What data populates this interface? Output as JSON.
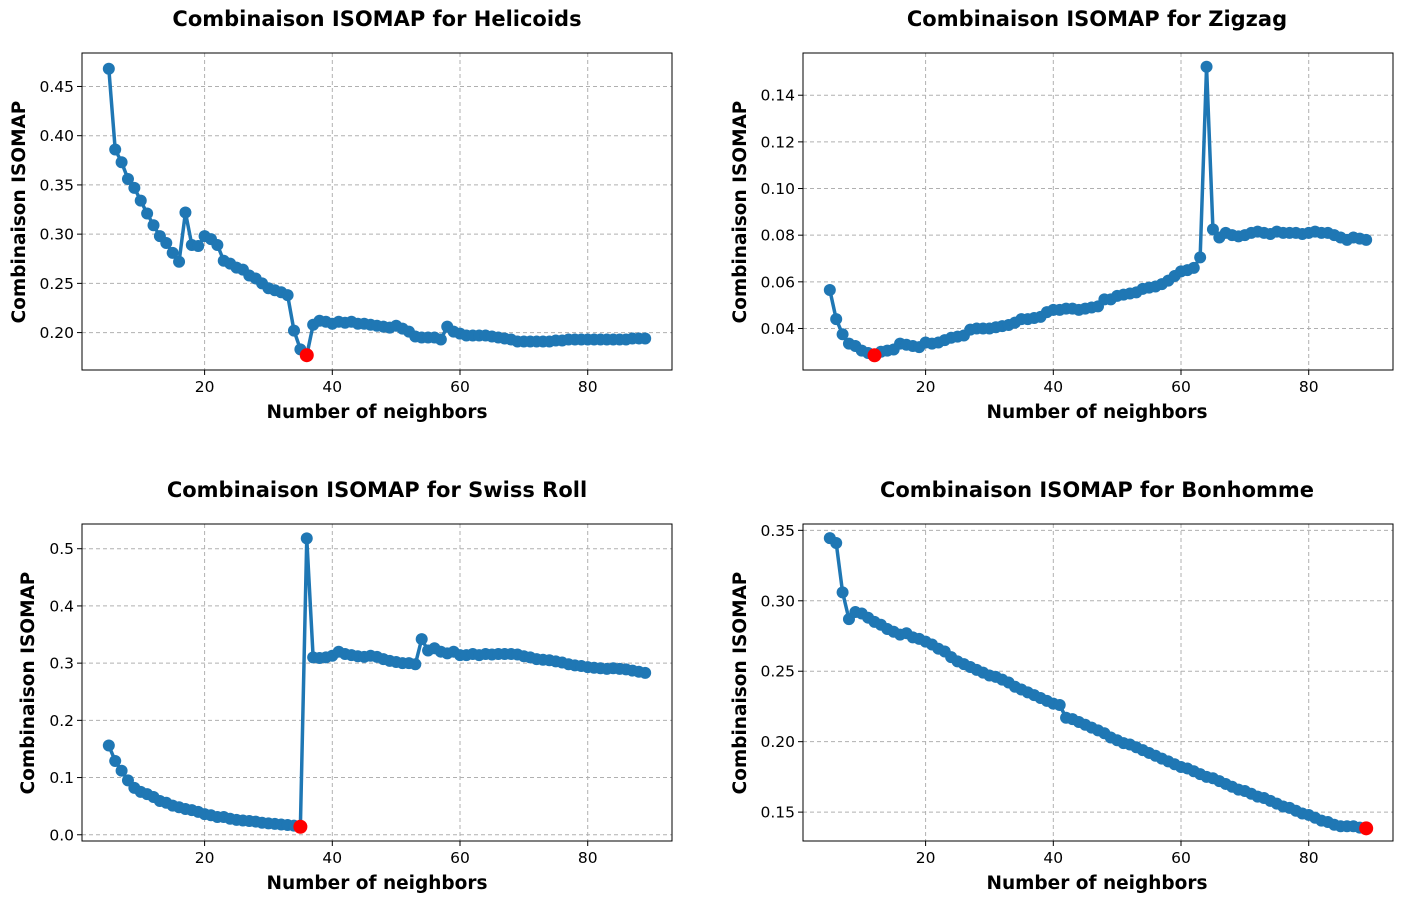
{
  "chart_data": [
    {
      "type": "line",
      "title": "Combinaison ISOMAP for Helicoids",
      "xlabel": "Number of neighbors",
      "ylabel": "Combinaison ISOMAP",
      "xlim": [
        0.8,
        93.2
      ],
      "ylim": [
        0.162,
        0.484
      ],
      "xticks": [
        20,
        40,
        60,
        80
      ],
      "xtick_labels": [
        "20",
        "40",
        "60",
        "80"
      ],
      "yticks": [
        0.2,
        0.25,
        0.3,
        0.35,
        0.4,
        0.45
      ],
      "ytick_labels": [
        "0.20",
        "0.25",
        "0.30",
        "0.35",
        "0.40",
        "0.45"
      ],
      "grid": true,
      "x": [
        5,
        6,
        7,
        8,
        9,
        10,
        11,
        12,
        13,
        14,
        15,
        16,
        17,
        18,
        19,
        20,
        21,
        22,
        23,
        24,
        25,
        26,
        27,
        28,
        29,
        30,
        31,
        32,
        33,
        34,
        35,
        36,
        37,
        38,
        39,
        40,
        41,
        42,
        43,
        44,
        45,
        46,
        47,
        48,
        49,
        50,
        51,
        52,
        53,
        54,
        55,
        56,
        57,
        58,
        59,
        60,
        61,
        62,
        63,
        64,
        65,
        66,
        67,
        68,
        69,
        70,
        71,
        72,
        73,
        74,
        75,
        76,
        77,
        78,
        79,
        80,
        81,
        82,
        83,
        84,
        85,
        86,
        87,
        88,
        89
      ],
      "series": [
        {
          "values": [
            0.468,
            0.386,
            0.373,
            0.356,
            0.347,
            0.334,
            0.321,
            0.309,
            0.298,
            0.291,
            0.281,
            0.272,
            0.322,
            0.289,
            0.288,
            0.298,
            0.295,
            0.289,
            0.273,
            0.27,
            0.266,
            0.264,
            0.258,
            0.255,
            0.25,
            0.245,
            0.243,
            0.241,
            0.238,
            0.202,
            0.183,
            0.177,
            0.208,
            0.212,
            0.211,
            0.209,
            0.211,
            0.21,
            0.211,
            0.209,
            0.209,
            0.208,
            0.207,
            0.206,
            0.205,
            0.207,
            0.204,
            0.201,
            0.196,
            0.195,
            0.195,
            0.195,
            0.193,
            0.206,
            0.201,
            0.199,
            0.197,
            0.197,
            0.197,
            0.197,
            0.196,
            0.195,
            0.194,
            0.193,
            0.191,
            0.191,
            0.191,
            0.191,
            0.191,
            0.191,
            0.192,
            0.192,
            0.193,
            0.193,
            0.193,
            0.193,
            0.193,
            0.193,
            0.193,
            0.193,
            0.193,
            0.193,
            0.194,
            0.194,
            0.194
          ]
        }
      ],
      "best": {
        "x": 36,
        "y": 0.177,
        "color": "#ff0000"
      }
    },
    {
      "type": "line",
      "title": "Combinaison ISOMAP for Zigzag",
      "xlabel": "Number of neighbors",
      "ylabel": "Combinaison ISOMAP",
      "xlim": [
        0.8,
        93.2
      ],
      "ylim": [
        0.0222,
        0.1581
      ],
      "xticks": [
        20,
        40,
        60,
        80
      ],
      "xtick_labels": [
        "20",
        "40",
        "60",
        "80"
      ],
      "yticks": [
        0.04,
        0.06,
        0.08,
        0.1,
        0.12,
        0.14
      ],
      "ytick_labels": [
        "0.04",
        "0.06",
        "0.08",
        "0.10",
        "0.12",
        "0.14"
      ],
      "grid": true,
      "x": [
        5,
        6,
        7,
        8,
        9,
        10,
        11,
        12,
        13,
        14,
        15,
        16,
        17,
        18,
        19,
        20,
        21,
        22,
        23,
        24,
        25,
        26,
        27,
        28,
        29,
        30,
        31,
        32,
        33,
        34,
        35,
        36,
        37,
        38,
        39,
        40,
        41,
        42,
        43,
        44,
        45,
        46,
        47,
        48,
        49,
        50,
        51,
        52,
        53,
        54,
        55,
        56,
        57,
        58,
        59,
        60,
        61,
        62,
        63,
        64,
        65,
        66,
        67,
        68,
        69,
        70,
        71,
        72,
        73,
        74,
        75,
        76,
        77,
        78,
        79,
        80,
        81,
        82,
        83,
        84,
        85,
        86,
        87,
        88,
        89
      ],
      "series": [
        {
          "values": [
            0.0565,
            0.044,
            0.0375,
            0.0335,
            0.0325,
            0.0305,
            0.0295,
            0.0285,
            0.03,
            0.0305,
            0.031,
            0.0335,
            0.033,
            0.0325,
            0.032,
            0.034,
            0.0335,
            0.034,
            0.035,
            0.036,
            0.0365,
            0.037,
            0.0395,
            0.04,
            0.04,
            0.04,
            0.0405,
            0.041,
            0.0415,
            0.0425,
            0.044,
            0.044,
            0.0445,
            0.045,
            0.047,
            0.048,
            0.048,
            0.0485,
            0.0485,
            0.048,
            0.0485,
            0.049,
            0.0495,
            0.0525,
            0.0525,
            0.054,
            0.0545,
            0.055,
            0.0555,
            0.057,
            0.0575,
            0.058,
            0.059,
            0.0605,
            0.0625,
            0.0645,
            0.065,
            0.066,
            0.0705,
            0.1522,
            0.0825,
            0.079,
            0.081,
            0.08,
            0.0795,
            0.08,
            0.081,
            0.0815,
            0.081,
            0.0805,
            0.0815,
            0.081,
            0.081,
            0.081,
            0.0805,
            0.081,
            0.0815,
            0.081,
            0.081,
            0.08,
            0.079,
            0.078,
            0.079,
            0.0785,
            0.078
          ]
        }
      ],
      "best": {
        "x": 12,
        "y": 0.0285,
        "color": "#ff0000"
      }
    },
    {
      "type": "line",
      "title": "Combinaison ISOMAP for Swiss Roll",
      "xlabel": "Number of neighbors",
      "ylabel": "Combinaison ISOMAP",
      "xlim": [
        0.8,
        93.2
      ],
      "ylim": [
        -0.0109,
        0.5432
      ],
      "xticks": [
        20,
        40,
        60,
        80
      ],
      "xtick_labels": [
        "20",
        "40",
        "60",
        "80"
      ],
      "yticks": [
        0.0,
        0.1,
        0.2,
        0.3,
        0.4,
        0.5
      ],
      "ytick_labels": [
        "0.0",
        "0.1",
        "0.2",
        "0.3",
        "0.4",
        "0.5"
      ],
      "grid": true,
      "x": [
        5,
        6,
        7,
        8,
        9,
        10,
        11,
        12,
        13,
        14,
        15,
        16,
        17,
        18,
        19,
        20,
        21,
        22,
        23,
        24,
        25,
        26,
        27,
        28,
        29,
        30,
        31,
        32,
        33,
        34,
        35,
        36,
        37,
        38,
        39,
        40,
        41,
        42,
        43,
        44,
        45,
        46,
        47,
        48,
        49,
        50,
        51,
        52,
        53,
        54,
        55,
        56,
        57,
        58,
        59,
        60,
        61,
        62,
        63,
        64,
        65,
        66,
        67,
        68,
        69,
        70,
        71,
        72,
        73,
        74,
        75,
        76,
        77,
        78,
        79,
        80,
        81,
        82,
        83,
        84,
        85,
        86,
        87,
        88,
        89
      ],
      "series": [
        {
          "values": [
            0.156,
            0.129,
            0.112,
            0.095,
            0.082,
            0.075,
            0.071,
            0.066,
            0.059,
            0.056,
            0.051,
            0.048,
            0.045,
            0.043,
            0.04,
            0.036,
            0.034,
            0.031,
            0.031,
            0.028,
            0.026,
            0.025,
            0.024,
            0.023,
            0.021,
            0.02,
            0.019,
            0.018,
            0.017,
            0.016,
            0.014,
            0.518,
            0.31,
            0.309,
            0.31,
            0.313,
            0.32,
            0.316,
            0.314,
            0.312,
            0.311,
            0.313,
            0.311,
            0.307,
            0.304,
            0.302,
            0.3,
            0.3,
            0.298,
            0.342,
            0.322,
            0.326,
            0.32,
            0.317,
            0.32,
            0.314,
            0.314,
            0.316,
            0.314,
            0.316,
            0.315,
            0.316,
            0.316,
            0.316,
            0.315,
            0.312,
            0.31,
            0.307,
            0.306,
            0.305,
            0.303,
            0.301,
            0.298,
            0.296,
            0.295,
            0.293,
            0.292,
            0.291,
            0.29,
            0.291,
            0.29,
            0.289,
            0.287,
            0.285,
            0.283
          ]
        }
      ],
      "best": {
        "x": 35,
        "y": 0.014,
        "color": "#ff0000"
      }
    },
    {
      "type": "line",
      "title": "Combinaison ISOMAP for Bonhomme",
      "xlabel": "Number of neighbors",
      "ylabel": "Combinaison ISOMAP",
      "xlim": [
        0.8,
        93.2
      ],
      "ylim": [
        0.1295,
        0.3545
      ],
      "xticks": [
        20,
        40,
        60,
        80
      ],
      "xtick_labels": [
        "20",
        "40",
        "60",
        "80"
      ],
      "yticks": [
        0.15,
        0.2,
        0.25,
        0.3,
        0.35
      ],
      "ytick_labels": [
        "0.15",
        "0.20",
        "0.25",
        "0.30",
        "0.35"
      ],
      "grid": true,
      "x": [
        5,
        6,
        7,
        8,
        9,
        10,
        11,
        12,
        13,
        14,
        15,
        16,
        17,
        18,
        19,
        20,
        21,
        22,
        23,
        24,
        25,
        26,
        27,
        28,
        29,
        30,
        31,
        32,
        33,
        34,
        35,
        36,
        37,
        38,
        39,
        40,
        41,
        42,
        43,
        44,
        45,
        46,
        47,
        48,
        49,
        50,
        51,
        52,
        53,
        54,
        55,
        56,
        57,
        58,
        59,
        60,
        61,
        62,
        63,
        64,
        65,
        66,
        67,
        68,
        69,
        70,
        71,
        72,
        73,
        74,
        75,
        76,
        77,
        78,
        79,
        80,
        81,
        82,
        83,
        84,
        85,
        86,
        87,
        88,
        89
      ],
      "series": [
        {
          "values": [
            0.3445,
            0.341,
            0.306,
            0.287,
            0.292,
            0.291,
            0.288,
            0.285,
            0.283,
            0.28,
            0.278,
            0.276,
            0.277,
            0.274,
            0.273,
            0.271,
            0.269,
            0.266,
            0.264,
            0.26,
            0.257,
            0.255,
            0.253,
            0.251,
            0.249,
            0.247,
            0.246,
            0.244,
            0.242,
            0.239,
            0.237,
            0.235,
            0.233,
            0.231,
            0.229,
            0.227,
            0.226,
            0.217,
            0.216,
            0.214,
            0.212,
            0.21,
            0.208,
            0.206,
            0.203,
            0.201,
            0.199,
            0.198,
            0.196,
            0.194,
            0.192,
            0.19,
            0.188,
            0.186,
            0.184,
            0.182,
            0.181,
            0.179,
            0.177,
            0.175,
            0.174,
            0.172,
            0.17,
            0.168,
            0.166,
            0.165,
            0.163,
            0.161,
            0.16,
            0.158,
            0.156,
            0.154,
            0.153,
            0.151,
            0.149,
            0.148,
            0.146,
            0.144,
            0.143,
            0.141,
            0.14,
            0.14,
            0.14,
            0.139,
            0.1385
          ]
        }
      ],
      "best": {
        "x": 89,
        "y": 0.1385,
        "color": "#ff0000"
      }
    }
  ]
}
